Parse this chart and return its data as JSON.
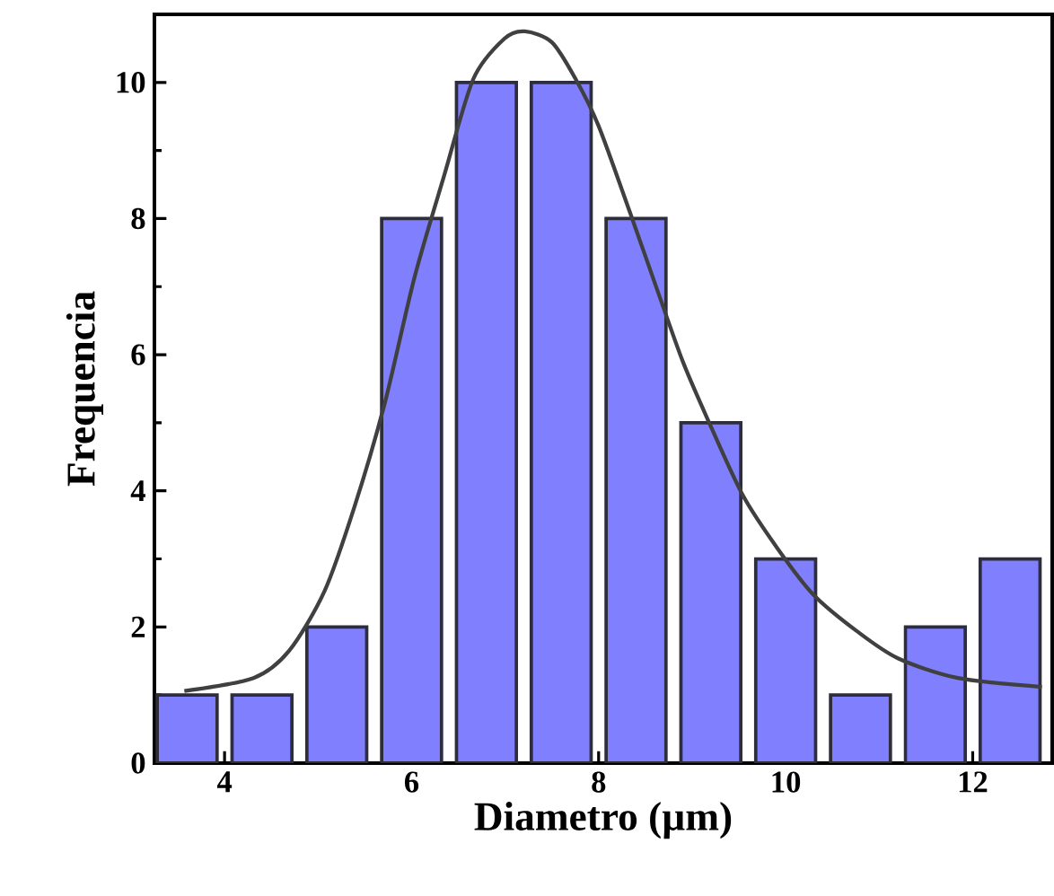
{
  "chart_data": {
    "type": "histogram",
    "xlabel": "Diametro (µm)",
    "ylabel": "Frequencia",
    "bins": [
      3.2,
      4.0,
      4.8,
      5.6,
      6.4,
      7.2,
      8.0,
      8.8,
      9.6,
      10.4,
      11.2,
      12.0,
      12.8
    ],
    "values": [
      1,
      1,
      2,
      8,
      10,
      10,
      8,
      5,
      3,
      1,
      2,
      3
    ],
    "color": "#8080ff",
    "series": [
      {
        "type": "line",
        "color": "#404040",
        "x": [
          3.57,
          4.31,
          4.69,
          5.07,
          5.39,
          5.71,
          6.03,
          6.35,
          6.66,
          6.99,
          7.21,
          7.5,
          7.75,
          8.0,
          8.33,
          8.65,
          8.9,
          9.15,
          9.54,
          9.92,
          10.3,
          10.76,
          11.2,
          11.84,
          12.74
        ],
        "values": [
          1.06,
          1.25,
          1.65,
          2.53,
          3.77,
          5.27,
          7.13,
          8.64,
          10.05,
          10.64,
          10.75,
          10.59,
          10.06,
          9.36,
          8.11,
          6.86,
          5.9,
          5.1,
          3.94,
          3.14,
          2.47,
          1.94,
          1.54,
          1.25,
          1.12
        ]
      }
    ],
    "xlim": [
      3.25,
      12.85
    ],
    "ylim": [
      0,
      11
    ],
    "xticks": [
      4,
      6,
      8,
      10,
      12
    ],
    "yticks": [
      0,
      2,
      4,
      6,
      8,
      10
    ]
  }
}
